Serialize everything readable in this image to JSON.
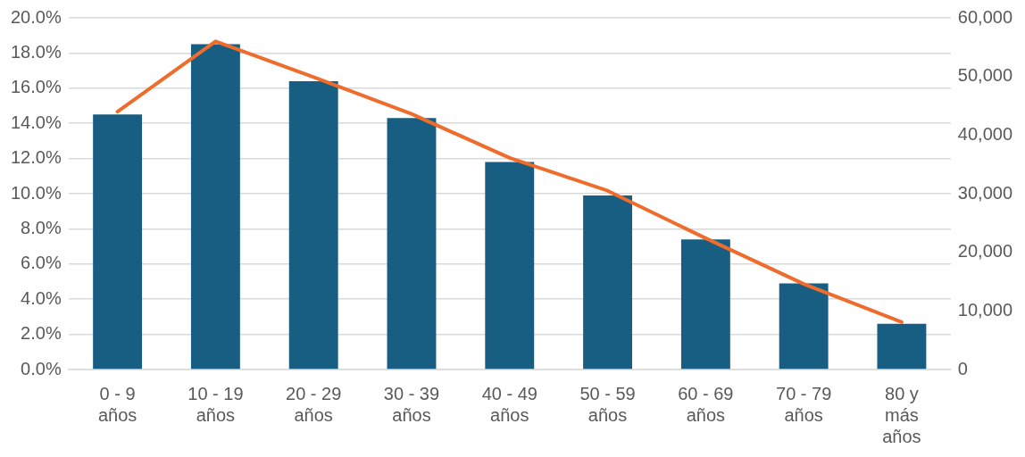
{
  "chart_data": {
    "type": "bar",
    "categories": [
      "0 - 9 años",
      "10 - 19 años",
      "20 - 29 años",
      "30 - 39 años",
      "40 - 49 años",
      "50 - 59 años",
      "60 - 69 años",
      "70 - 79 años",
      "80  y más años"
    ],
    "series": [
      {
        "color": "#175e82",
        "values": [
          14.5,
          18.5,
          16.4,
          14.3,
          11.8,
          9.9,
          7.4,
          4.9,
          2.6
        ]
      },
      {
        "type": "line",
        "axis": "y2",
        "color": "#ee6d2c",
        "values": [
          44000,
          56000,
          49900,
          43600,
          36100,
          30500,
          22400,
          14600,
          8100
        ]
      }
    ],
    "ylim": [
      0,
      20
    ],
    "yticks": [
      {
        "value": 0,
        "label": "0.0%"
      },
      {
        "value": 2,
        "label": "2.0%"
      },
      {
        "value": 4,
        "label": "4.0%"
      },
      {
        "value": 6,
        "label": "6.0%"
      },
      {
        "value": 8,
        "label": "8.0%"
      },
      {
        "value": 10,
        "label": "10.0%"
      },
      {
        "value": 12,
        "label": "12.0%"
      },
      {
        "value": 14,
        "label": "14.0%"
      },
      {
        "value": 16,
        "label": "16.0%"
      },
      {
        "value": 18,
        "label": "18.0%"
      },
      {
        "value": 20,
        "label": "20.0%"
      }
    ],
    "y2lim": [
      0,
      60000
    ],
    "y2ticks": [
      {
        "value": 0,
        "label": "0"
      },
      {
        "value": 10000,
        "label": "10,000"
      },
      {
        "value": 20000,
        "label": "20,000"
      },
      {
        "value": 30000,
        "label": "30,000"
      },
      {
        "value": 40000,
        "label": "40,000"
      },
      {
        "value": 50000,
        "label": "50,000"
      },
      {
        "value": 60000,
        "label": "60,000"
      }
    ],
    "grid": "y",
    "legend": false,
    "marker": "none",
    "line_style": "solid"
  }
}
